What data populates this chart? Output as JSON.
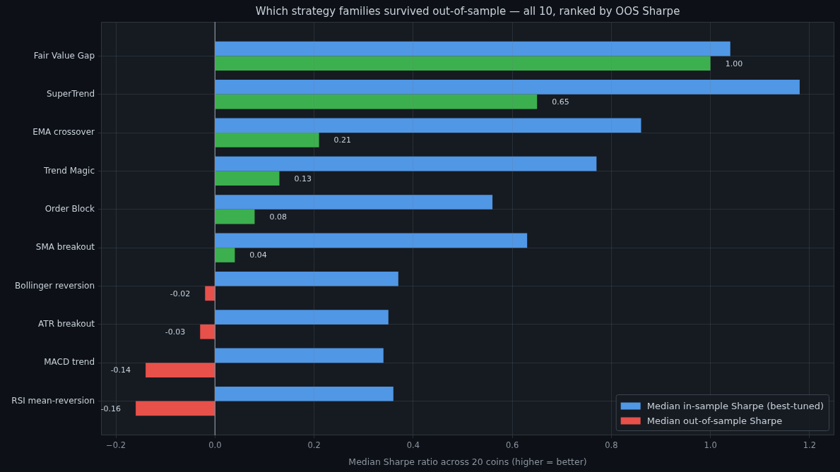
{
  "chart_data": {
    "type": "bar",
    "orientation": "horizontal",
    "title": "Which strategy families survived out-of-sample — all 10, ranked by OOS Sharpe",
    "xlabel": "Median Sharpe ratio across 20 coins (higher = better)",
    "categories": [
      "Fair Value Gap",
      "SuperTrend",
      "EMA crossover",
      "Trend Magic",
      "Order Block",
      "SMA breakout",
      "Bollinger reversion",
      "ATR breakout",
      "MACD trend",
      "RSI mean-reversion"
    ],
    "series": [
      {
        "name": "Median in-sample Sharpe (best-tuned)",
        "color": "#5097e6",
        "values": [
          1.04,
          1.18,
          0.86,
          0.77,
          0.56,
          0.63,
          0.37,
          0.35,
          0.34,
          0.36
        ]
      },
      {
        "name": "Median out-of-sample Sharpe",
        "color": "#e8504a",
        "colors": [
          "#3cb04e",
          "#3cb04e",
          "#3cb04e",
          "#3cb04e",
          "#3cb04e",
          "#3cb04e",
          "#e8504a",
          "#e8504a",
          "#e8504a",
          "#e8504a"
        ],
        "values": [
          1.0,
          0.65,
          0.21,
          0.13,
          0.08,
          0.04,
          -0.02,
          -0.03,
          -0.14,
          -0.16
        ],
        "value_labels": [
          "1.00",
          "0.65",
          "0.21",
          "0.13",
          "0.08",
          "0.04",
          "-0.02",
          "-0.03",
          "-0.14",
          "-0.16"
        ]
      }
    ],
    "xlim": [
      -0.23,
      1.25
    ],
    "xticks": [
      {
        "value": -0.2,
        "label": "−0.2"
      },
      {
        "value": 0,
        "label": "0.0"
      },
      0.2,
      0.4,
      0.6,
      0.8,
      {
        "value": 1,
        "label": "1.0"
      },
      1.2
    ],
    "ref_lines": [
      {
        "axis": "x",
        "value": 0,
        "color": "#8b949e"
      }
    ],
    "grid": true,
    "legend": "bottom right"
  }
}
